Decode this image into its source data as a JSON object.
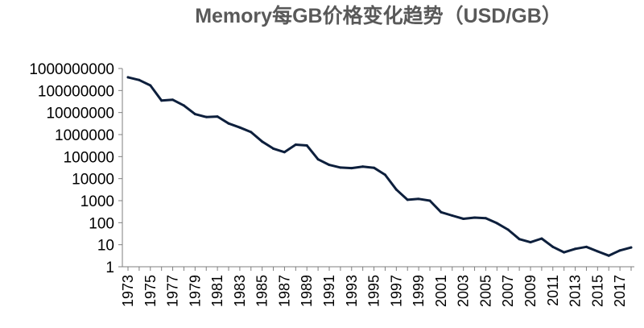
{
  "chart_data": {
    "type": "line",
    "title": "Memory每GB价格变化趋势（USD/GB）",
    "xlabel": "",
    "ylabel": "",
    "y_scale": "log",
    "ylim": [
      1,
      1000000000
    ],
    "xlim": [
      1973,
      2018
    ],
    "grid": false,
    "legend": "none",
    "y_tick_labels": [
      "1",
      "10",
      "100",
      "1000",
      "10000",
      "100000",
      "1000000",
      "10000000",
      "100000000",
      "1000000000"
    ],
    "x_tick_labels": [
      "1973",
      "1975",
      "1977",
      "1979",
      "1981",
      "1983",
      "1985",
      "1987",
      "1989",
      "1991",
      "1993",
      "1995",
      "1997",
      "1999",
      "2001",
      "2003",
      "2005",
      "2007",
      "2009",
      "2011",
      "2013",
      "2015",
      "2017"
    ],
    "series": [
      {
        "color": "#0d1f3c",
        "x": [
          1973,
          1974,
          1975,
          1976,
          1977,
          1978,
          1979,
          1980,
          1981,
          1982,
          1983,
          1984,
          1985,
          1986,
          1987,
          1988,
          1989,
          1990,
          1991,
          1992,
          1993,
          1994,
          1995,
          1996,
          1997,
          1998,
          1999,
          2000,
          2001,
          2002,
          2003,
          2004,
          2005,
          2006,
          2007,
          2008,
          2009,
          2010,
          2011,
          2012,
          2013,
          2014,
          2015,
          2016,
          2017,
          2018
        ],
        "values": [
          400000000,
          300000000,
          170000000,
          35000000,
          38000000,
          21000000,
          8500000,
          6300000,
          6600000,
          3200000,
          2100000,
          1300000,
          480000,
          230000,
          160000,
          350000,
          320000,
          75000,
          42000,
          32000,
          30000,
          35000,
          31000,
          15000,
          3200,
          1100,
          1200,
          1000,
          300,
          210,
          150,
          170,
          160,
          95,
          48,
          18,
          13,
          19,
          8,
          4.5,
          6.5,
          8,
          5,
          3.2,
          5.5,
          7.5
        ]
      }
    ]
  }
}
